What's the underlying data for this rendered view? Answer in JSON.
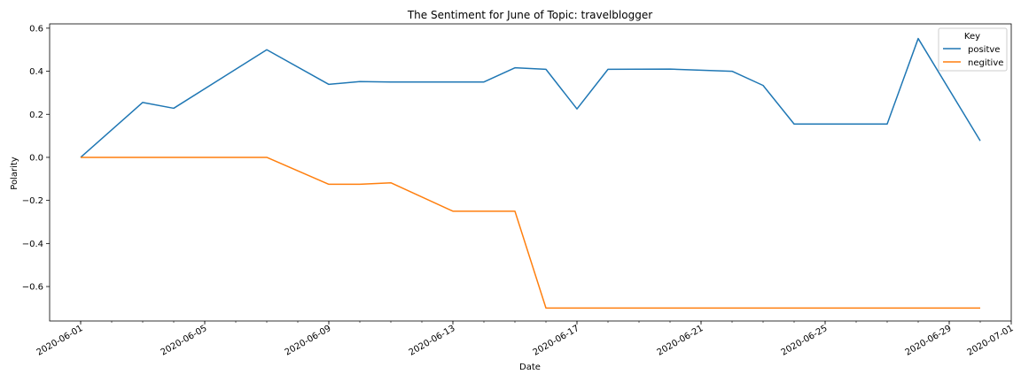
{
  "chart_data": {
    "type": "line",
    "title": "The Sentiment for June of Topic: travelblogger",
    "xlabel": "Date",
    "ylabel": "Polarity",
    "xlim": [
      "2020-05-31",
      "2020-07-01"
    ],
    "ylim": [
      -0.76,
      0.62
    ],
    "x_ticks": [
      "2020-06-01",
      "2020-06-05",
      "2020-06-09",
      "2020-06-13",
      "2020-06-17",
      "2020-06-21",
      "2020-06-25",
      "2020-06-29",
      "2020-07-01"
    ],
    "y_ticks": [
      0.6,
      0.4,
      0.2,
      0.0,
      -0.2,
      -0.4,
      -0.6
    ],
    "y_tick_labels": [
      "0.6",
      "0.4",
      "0.2",
      "0.0",
      "−0.2",
      "−0.4",
      "−0.6"
    ],
    "grid": false,
    "legend": {
      "title": "Key",
      "placement": "top-right"
    },
    "series": [
      {
        "name": "positve",
        "color": "#1f77b4",
        "points": [
          [
            "2020-06-01",
            0.0
          ],
          [
            "2020-06-03",
            0.255
          ],
          [
            "2020-06-04",
            0.228
          ],
          [
            "2020-06-07",
            0.5
          ],
          [
            "2020-06-09",
            0.339
          ],
          [
            "2020-06-10",
            0.352
          ],
          [
            "2020-06-11",
            0.35
          ],
          [
            "2020-06-14",
            0.35
          ],
          [
            "2020-06-15",
            0.416
          ],
          [
            "2020-06-16",
            0.409
          ],
          [
            "2020-06-17",
            0.225
          ],
          [
            "2020-06-18",
            0.409
          ],
          [
            "2020-06-20",
            0.41
          ],
          [
            "2020-06-22",
            0.4
          ],
          [
            "2020-06-23",
            0.334
          ],
          [
            "2020-06-24",
            0.155
          ],
          [
            "2020-06-27",
            0.155
          ],
          [
            "2020-06-28",
            0.552
          ],
          [
            "2020-06-30",
            0.077
          ]
        ]
      },
      {
        "name": "negitive",
        "color": "#ff7f0e",
        "points": [
          [
            "2020-06-01",
            0.0
          ],
          [
            "2020-06-07",
            0.0
          ],
          [
            "2020-06-09",
            -0.125
          ],
          [
            "2020-06-10",
            -0.125
          ],
          [
            "2020-06-11",
            -0.118
          ],
          [
            "2020-06-13",
            -0.25
          ],
          [
            "2020-06-15",
            -0.25
          ],
          [
            "2020-06-16",
            -0.7
          ],
          [
            "2020-06-30",
            -0.7
          ]
        ]
      }
    ]
  }
}
